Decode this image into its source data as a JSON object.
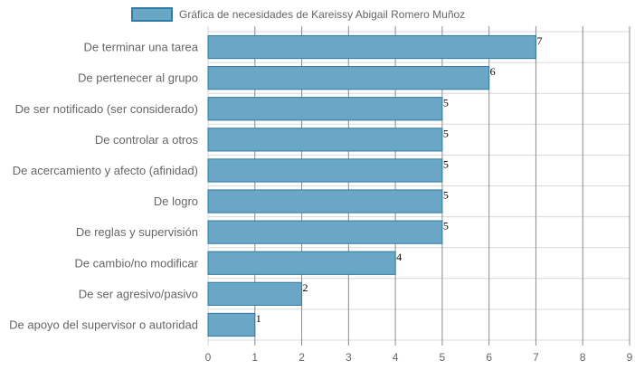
{
  "chart_data": {
    "type": "bar",
    "orientation": "horizontal",
    "categories": [
      "De terminar una tarea",
      "De pertenecer al grupo",
      "De ser notificado (ser considerado)",
      "De controlar a otros",
      "De acercamiento y afecto (afinidad)",
      "De logro",
      "De reglas y supervisión",
      "De cambio/no modificar",
      "De ser agresivo/pasivo",
      "De apoyo del supervisor o autoridad"
    ],
    "series": [
      {
        "name": "Gráfica de necesidades de Kareissy Abigail Romero Muñoz",
        "values": [
          7,
          6,
          5,
          5,
          5,
          5,
          5,
          4,
          2,
          1
        ]
      }
    ],
    "xlim": [
      0,
      9
    ],
    "x_ticks": [
      "0",
      "1",
      "2",
      "3",
      "4",
      "5",
      "6",
      "7",
      "8",
      "9"
    ],
    "grid": true,
    "legend_position": "top",
    "colors": {
      "bar_fill": "#6aa6c5",
      "bar_stroke": "#2f7ba3",
      "grid": "#d9d9d9",
      "grid_major": "#8c8c8c"
    }
  }
}
